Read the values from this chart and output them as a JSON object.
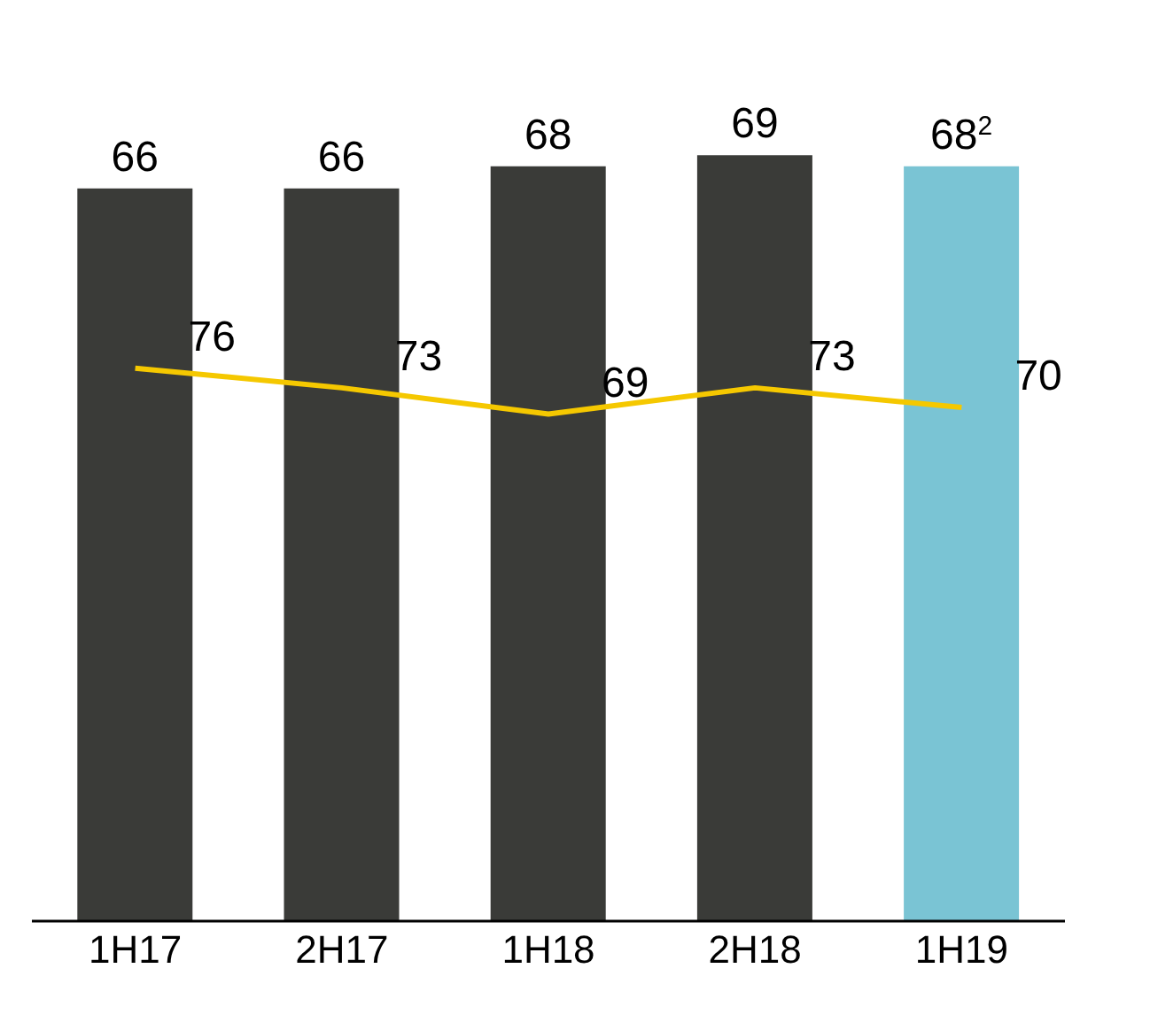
{
  "chart_data": {
    "type": "bar",
    "categories": [
      "1H17",
      "2H17",
      "1H18",
      "2H18",
      "1H19"
    ],
    "series": [
      {
        "colors": [
          "#3a3b38",
          "#3a3b38",
          "#3a3b38",
          "#3a3b38",
          "#7ac4d4"
        ],
        "values": [
          66,
          66,
          68,
          69,
          68
        ],
        "value_labels": [
          "66",
          "66",
          "68",
          "69",
          "68$^{2}$"
        ]
      },
      {
        "type": "line",
        "axis": "y2",
        "color": "#f5c800",
        "values": [
          76,
          73,
          69,
          73,
          70
        ],
        "value_labels": [
          "76",
          "73",
          "69",
          "73",
          "70"
        ]
      }
    ],
    "tick_labels": "x"
  }
}
